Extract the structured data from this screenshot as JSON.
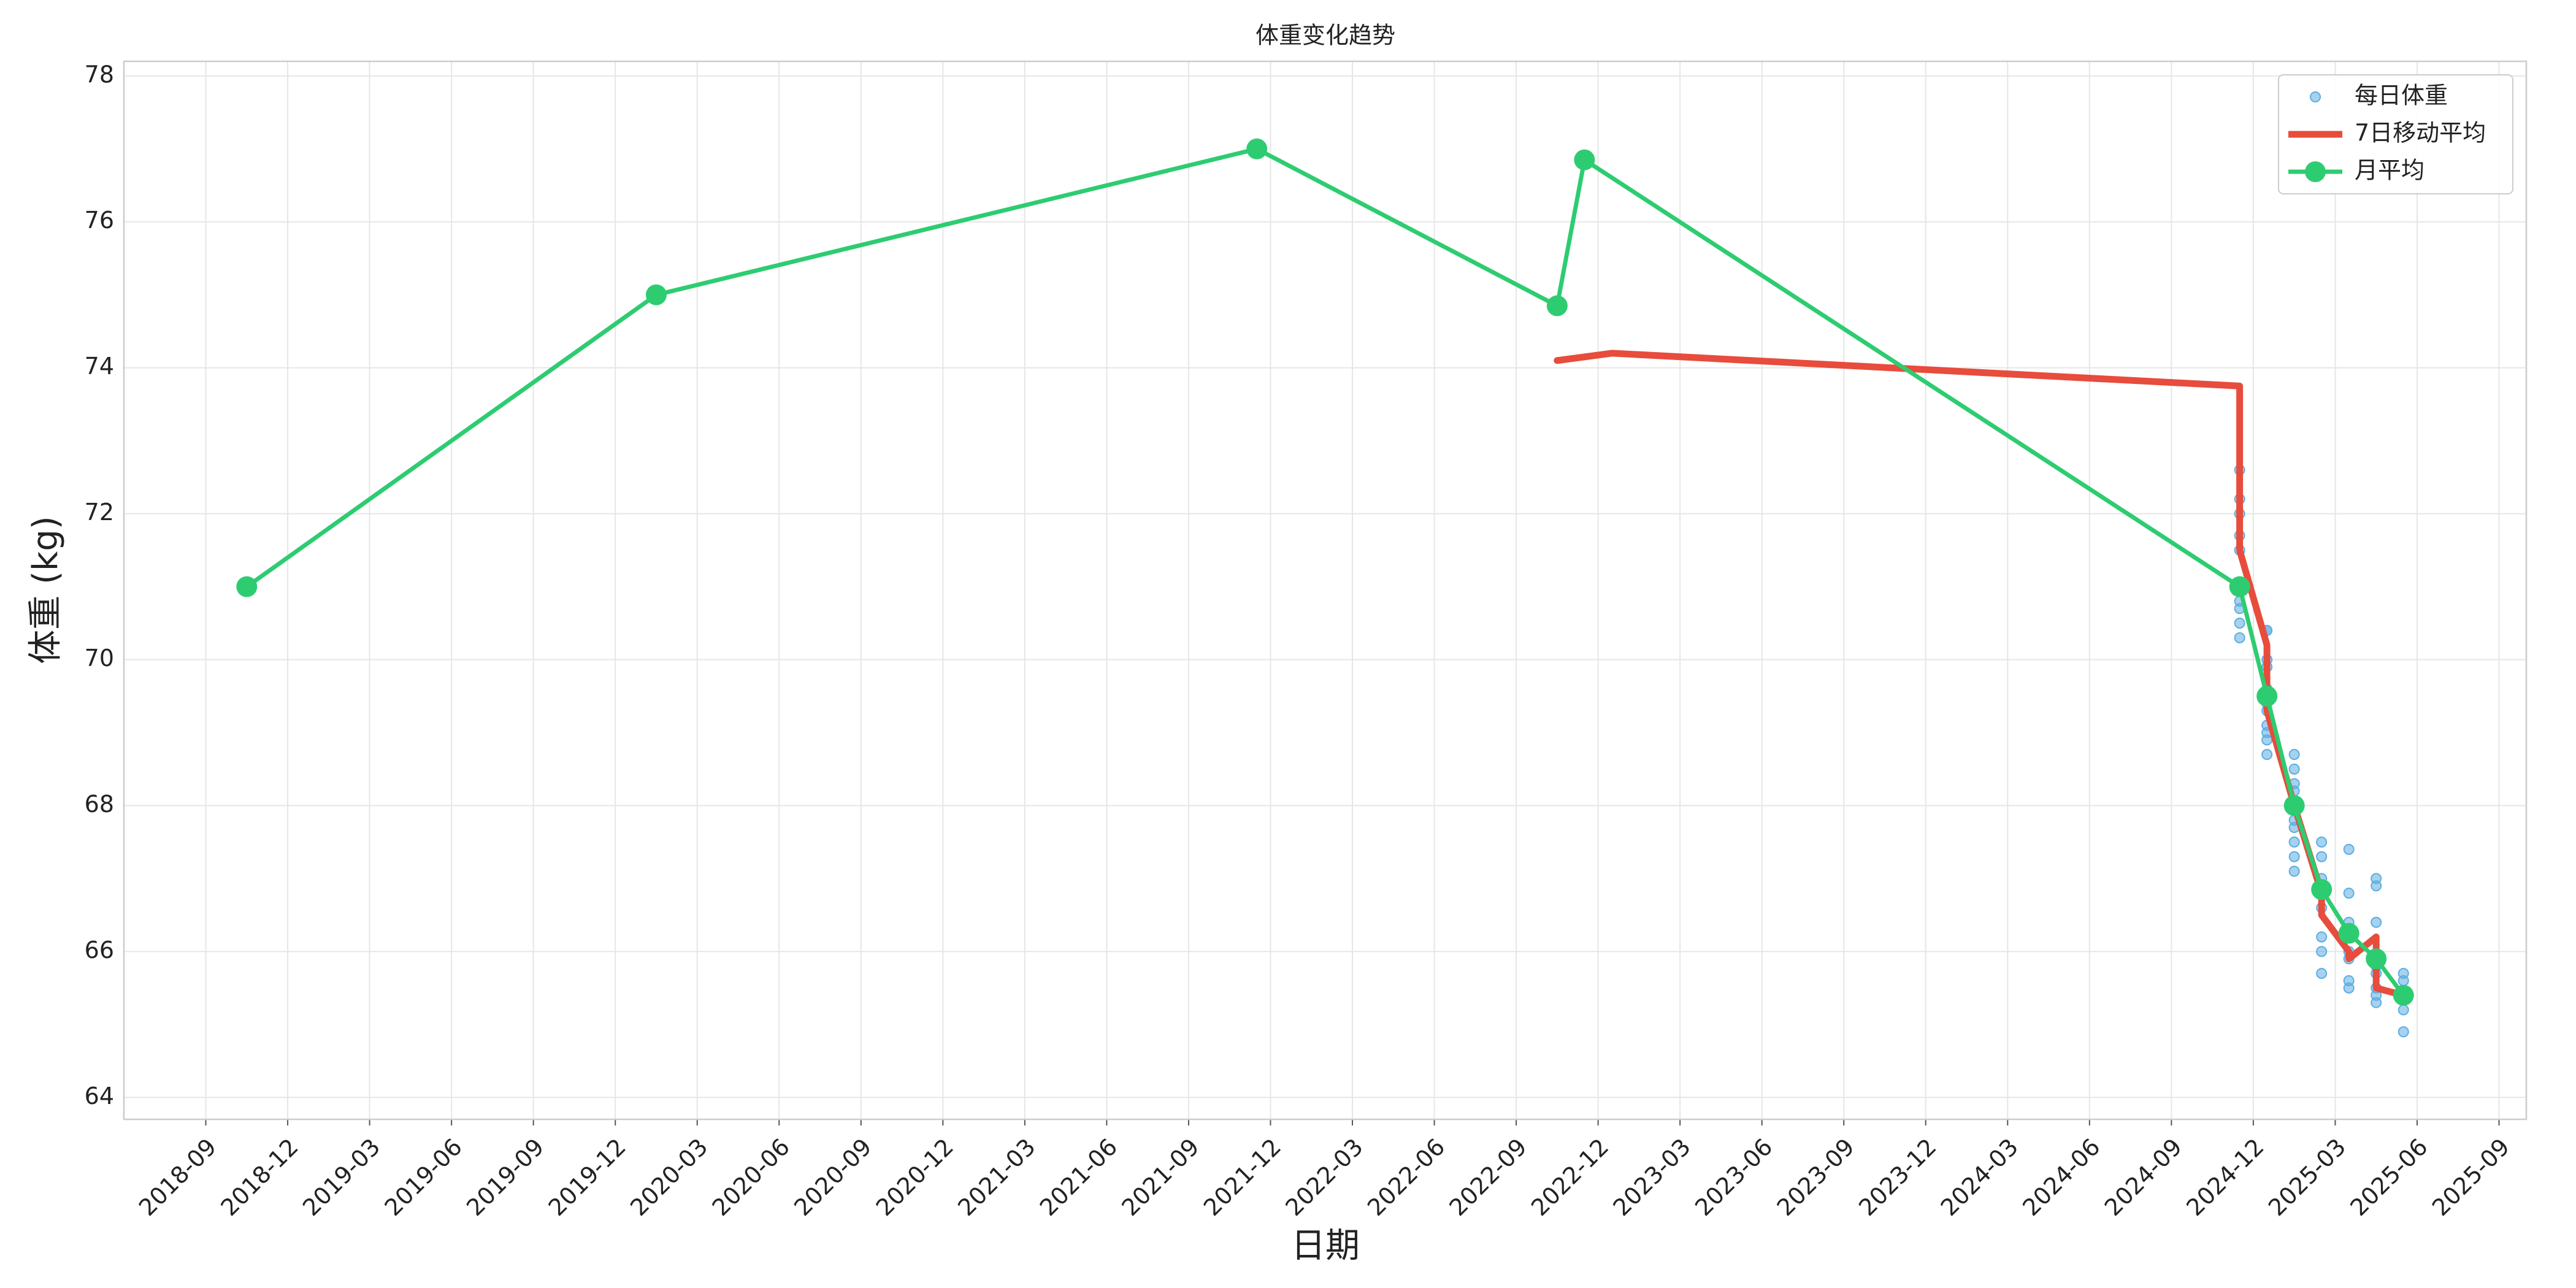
{
  "chart_data": {
    "type": "line",
    "title": "体重变化趋势",
    "xlabel": "日期",
    "ylabel": "体重 (kg)",
    "xlim": [
      "2018-06",
      "2025-10"
    ],
    "xticks": [
      "2018-09",
      "2018-12",
      "2019-03",
      "2019-06",
      "2019-09",
      "2019-12",
      "2020-03",
      "2020-06",
      "2020-09",
      "2020-12",
      "2021-03",
      "2021-06",
      "2021-09",
      "2021-12",
      "2022-03",
      "2022-06",
      "2022-09",
      "2022-12",
      "2023-03",
      "2023-06",
      "2023-09",
      "2023-12",
      "2024-03",
      "2024-06",
      "2024-09",
      "2024-12",
      "2025-03",
      "2025-06",
      "2025-09"
    ],
    "ylim": [
      63.7,
      78.2
    ],
    "yticks": [
      64,
      66,
      68,
      70,
      72,
      74,
      76,
      78
    ],
    "grid": true,
    "legend": "upper right",
    "series": [
      {
        "name": "每日体重",
        "type": "scatter",
        "color": "#5dade2",
        "x": [
          "2022-11",
          "2024-11",
          "2024-11",
          "2024-11",
          "2024-11",
          "2024-11",
          "2024-11",
          "2024-11",
          "2024-11",
          "2024-11",
          "2024-11",
          "2024-11",
          "2024-12",
          "2024-12",
          "2024-12",
          "2024-12",
          "2024-12",
          "2024-12",
          "2024-12",
          "2024-12",
          "2024-12",
          "2024-12",
          "2024-12",
          "2024-12",
          "2025-01",
          "2025-01",
          "2025-01",
          "2025-01",
          "2025-01",
          "2025-01",
          "2025-01",
          "2025-01",
          "2025-01",
          "2025-01",
          "2025-02",
          "2025-02",
          "2025-02",
          "2025-02",
          "2025-02",
          "2025-02",
          "2025-02",
          "2025-02",
          "2025-02",
          "2025-03",
          "2025-03",
          "2025-03",
          "2025-03",
          "2025-03",
          "2025-03",
          "2025-03",
          "2025-03",
          "2025-04",
          "2025-04",
          "2025-04",
          "2025-04",
          "2025-04",
          "2025-04",
          "2025-04",
          "2025-04",
          "2025-05",
          "2025-05",
          "2025-05",
          "2025-05",
          "2025-05"
        ],
        "values": [
          76.85,
          72.2,
          72.0,
          71.7,
          71.5,
          72.6,
          71.0,
          70.8,
          70.5,
          70.3,
          71.0,
          70.7,
          70.4,
          70.0,
          69.6,
          69.9,
          69.5,
          69.3,
          69.1,
          68.9,
          69.4,
          68.7,
          70.4,
          69.0,
          68.5,
          68.2,
          68.0,
          67.8,
          67.5,
          68.7,
          67.1,
          67.7,
          67.3,
          68.3,
          67.0,
          66.8,
          66.6,
          67.5,
          66.2,
          66.0,
          67.3,
          66.9,
          65.7,
          66.8,
          66.3,
          65.9,
          65.6,
          66.0,
          66.4,
          65.5,
          67.4,
          66.9,
          65.5,
          65.8,
          65.4,
          66.4,
          67.0,
          65.3,
          65.7,
          65.6,
          65.2,
          64.9,
          65.4,
          65.7
        ]
      },
      {
        "name": "7日移动平均",
        "type": "line",
        "color": "#e74c3c",
        "x": [
          "2022-10",
          "2022-12",
          "2024-11",
          "2024-11",
          "2024-12",
          "2024-12",
          "2025-01",
          "2025-02",
          "2025-02",
          "2025-03",
          "2025-03",
          "2025-04",
          "2025-04",
          "2025-05"
        ],
        "values": [
          74.1,
          74.2,
          73.75,
          71.5,
          70.2,
          69.3,
          68.0,
          66.8,
          66.5,
          66.0,
          65.9,
          66.2,
          65.5,
          65.4
        ]
      },
      {
        "name": "月平均",
        "type": "line-marker",
        "color": "#2ecc71",
        "x": [
          "2018-10",
          "2020-01",
          "2021-11",
          "2022-10",
          "2022-11",
          "2024-11",
          "2024-12",
          "2025-01",
          "2025-02",
          "2025-03",
          "2025-04",
          "2025-05"
        ],
        "values": [
          71.0,
          75.0,
          77.0,
          74.85,
          76.85,
          71.0,
          69.5,
          68.0,
          66.85,
          66.25,
          65.9,
          65.4
        ]
      }
    ]
  }
}
